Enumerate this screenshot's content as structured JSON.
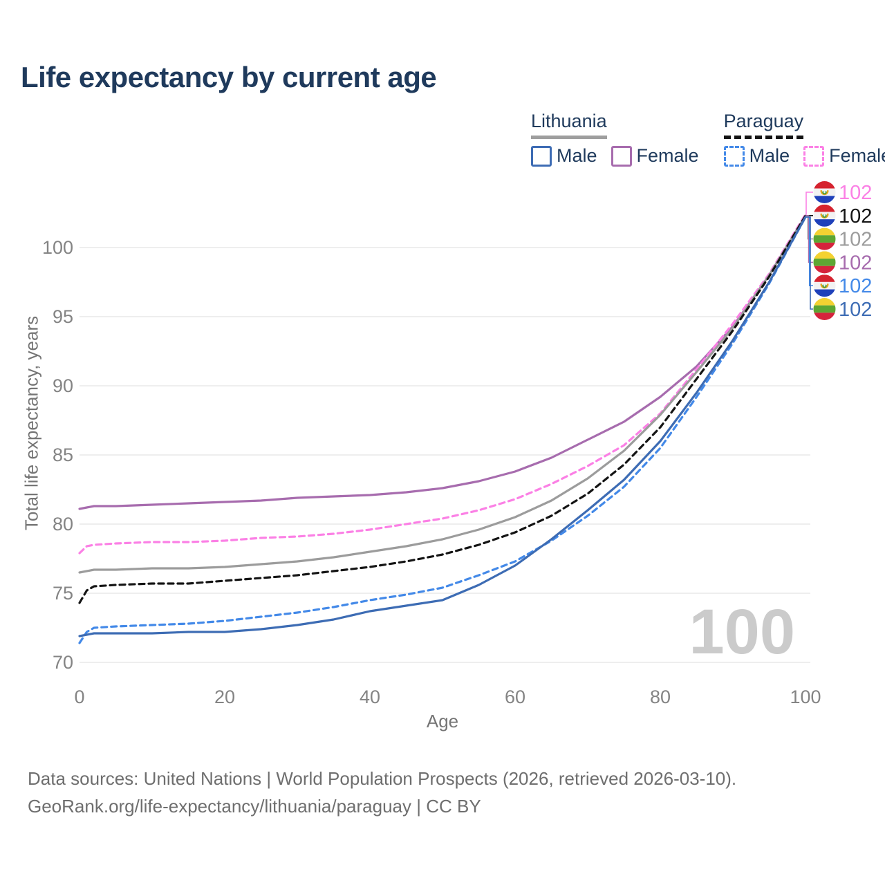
{
  "title": "Life expectancy by current age",
  "watermark": "100",
  "legend": {
    "groups": [
      {
        "country": "Lithuania",
        "line_style": "solid",
        "underline_color": "#9e9e9e",
        "items": [
          {
            "label": "Male",
            "color": "#3d6cb4"
          },
          {
            "label": "Female",
            "color": "#a76cae"
          }
        ]
      },
      {
        "country": "Paraguay",
        "line_style": "dashed",
        "underline_color": "#141414",
        "items": [
          {
            "label": "Male",
            "color": "#4389e8"
          },
          {
            "label": "Female",
            "color": "#fb80e5"
          }
        ]
      }
    ]
  },
  "footer": {
    "line1": "Data sources: United Nations | World Population Prospects (2026, retrieved 2026-03-10).",
    "line2": "GeoRank.org/life-expectancy/lithuania/paraguay | CC BY"
  },
  "chart_data": {
    "type": "line",
    "title": "Life expectancy by current age",
    "xlabel": "Age",
    "ylabel": "Total life expectancy, years",
    "x_ticks": [
      0,
      20,
      40,
      60,
      80,
      100
    ],
    "y_ticks": [
      70,
      75,
      80,
      85,
      90,
      95,
      100
    ],
    "xlim": [
      0,
      100
    ],
    "ylim": [
      70,
      102.5
    ],
    "grid": "horizontal",
    "legend_position": "top-right",
    "x": [
      0,
      1,
      2,
      5,
      10,
      15,
      20,
      25,
      30,
      35,
      40,
      45,
      50,
      55,
      60,
      65,
      70,
      75,
      80,
      85,
      90,
      95,
      100
    ],
    "series": [
      {
        "id": "lt_female",
        "name": "Lithuania Female",
        "country": "Lithuania",
        "sex": "Female",
        "color": "#a76cae",
        "dash": "solid",
        "end_label": "102",
        "values": [
          81.1,
          81.2,
          81.3,
          81.3,
          81.4,
          81.5,
          81.6,
          81.7,
          81.9,
          82.0,
          82.1,
          82.3,
          82.6,
          83.1,
          83.8,
          84.8,
          86.1,
          87.4,
          89.2,
          91.4,
          94.3,
          98.0,
          102.3
        ]
      },
      {
        "id": "py_female",
        "name": "Paraguay Female",
        "country": "Paraguay",
        "sex": "Female",
        "color": "#fb80e5",
        "dash": "dashed",
        "end_label": "102",
        "values": [
          77.9,
          78.4,
          78.5,
          78.6,
          78.7,
          78.7,
          78.8,
          79.0,
          79.1,
          79.3,
          79.6,
          80.0,
          80.4,
          81.0,
          81.8,
          82.9,
          84.2,
          85.7,
          88.0,
          91.2,
          94.5,
          98.1,
          102.4
        ]
      },
      {
        "id": "lt_total",
        "name": "Lithuania",
        "country": "Lithuania",
        "sex": "Both",
        "color": "#9c9c9c",
        "dash": "solid",
        "end_label": "102",
        "values": [
          76.5,
          76.6,
          76.7,
          76.7,
          76.8,
          76.8,
          76.9,
          77.1,
          77.3,
          77.6,
          78.0,
          78.4,
          78.9,
          79.6,
          80.5,
          81.7,
          83.3,
          85.3,
          87.9,
          91.0,
          94.2,
          98.0,
          102.3
        ]
      },
      {
        "id": "py_total",
        "name": "Paraguay",
        "country": "Paraguay",
        "sex": "Both",
        "color": "#141414",
        "dash": "dashed",
        "end_label": "102",
        "values": [
          74.3,
          75.2,
          75.5,
          75.6,
          75.7,
          75.7,
          75.9,
          76.1,
          76.3,
          76.6,
          76.9,
          77.3,
          77.8,
          78.5,
          79.4,
          80.6,
          82.2,
          84.3,
          87.0,
          90.5,
          94.0,
          97.9,
          102.3
        ]
      },
      {
        "id": "py_male",
        "name": "Paraguay Male",
        "country": "Paraguay",
        "sex": "Male",
        "color": "#4389e8",
        "dash": "dashed",
        "end_label": "102",
        "values": [
          71.4,
          72.2,
          72.5,
          72.6,
          72.7,
          72.8,
          73.0,
          73.3,
          73.6,
          74.0,
          74.5,
          74.9,
          75.4,
          76.3,
          77.3,
          78.8,
          80.6,
          82.7,
          85.5,
          89.2,
          93.1,
          97.4,
          102.2
        ]
      },
      {
        "id": "lt_male",
        "name": "Lithuania Male",
        "country": "Lithuania",
        "sex": "Male",
        "color": "#3d6cb4",
        "dash": "solid",
        "end_label": "102",
        "values": [
          71.9,
          72.0,
          72.1,
          72.1,
          72.1,
          72.2,
          72.2,
          72.4,
          72.7,
          73.1,
          73.7,
          74.1,
          74.5,
          75.6,
          77.0,
          78.9,
          81.0,
          83.2,
          86.0,
          89.5,
          93.3,
          97.5,
          102.2
        ]
      }
    ],
    "right_label_order": [
      "py_female",
      "py_total",
      "lt_total",
      "lt_female",
      "py_male",
      "lt_male"
    ],
    "flag_colors": {
      "paraguay": {
        "top": "#d5232f",
        "middle": "#f2f2f2",
        "bottom": "#1f41ba",
        "emblem_gold": "#e3a81c",
        "emblem_green": "#3f9e3f"
      },
      "lithuania": {
        "top": "#f4d232",
        "middle": "#5da633",
        "bottom": "#d5233c"
      }
    },
    "gridline_color": "#e9e9e9",
    "tick_label_color": "#848484"
  }
}
